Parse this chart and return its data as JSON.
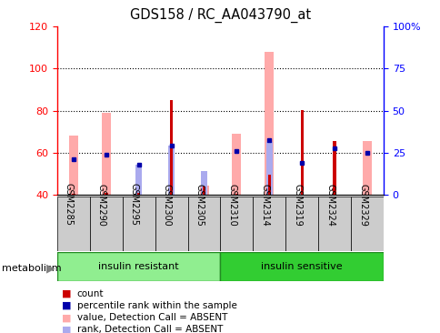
{
  "title": "GDS158 / RC_AA043790_at",
  "samples": [
    "GSM2285",
    "GSM2290",
    "GSM2295",
    "GSM2300",
    "GSM2305",
    "GSM2310",
    "GSM2314",
    "GSM2319",
    "GSM2324",
    "GSM2329"
  ],
  "ylim_left": [
    40,
    120
  ],
  "ylim_right": [
    0,
    100
  ],
  "left_ticks": [
    40,
    60,
    80,
    100,
    120
  ],
  "right_ticks": [
    0,
    25,
    50,
    75,
    100
  ],
  "right_tick_labels": [
    "0",
    "25",
    "50",
    "75",
    "100%"
  ],
  "count_values": [
    40.5,
    41.0,
    41.0,
    85.0,
    44.0,
    40.5,
    49.5,
    80.5,
    65.5,
    null
  ],
  "count_color": "#cc0000",
  "percentile_values": [
    57.0,
    59.0,
    54.5,
    63.5,
    null,
    61.0,
    66.0,
    55.0,
    62.0,
    60.0
  ],
  "percentile_color": "#0000aa",
  "value_absent_values": [
    68.0,
    79.0,
    null,
    null,
    44.5,
    69.0,
    108.0,
    null,
    null,
    65.5
  ],
  "value_absent_color": "#ffaaaa",
  "rank_absent_values": [
    null,
    null,
    54.5,
    63.5,
    51.5,
    null,
    65.0,
    null,
    null,
    null
  ],
  "rank_absent_color": "#aaaaee",
  "pink_bar_width": 0.28,
  "lightblue_bar_width": 0.2,
  "red_bar_width": 0.09
}
